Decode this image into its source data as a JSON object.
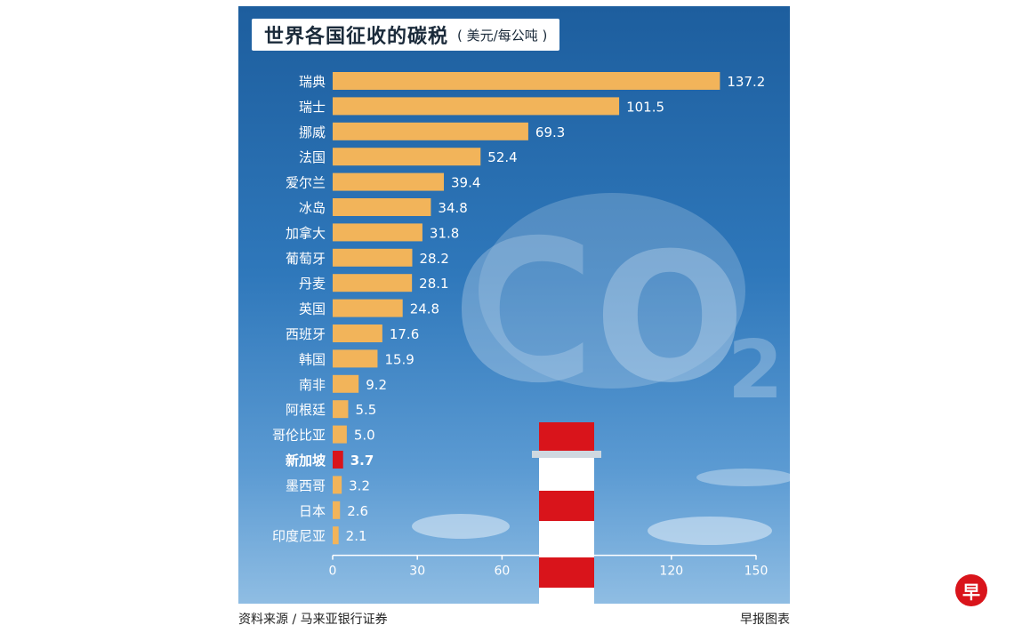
{
  "header": {
    "title": "世界各国征收的碳税",
    "unit": "( 美元/每公吨 )"
  },
  "footer": {
    "source": "资料来源 / 马来亚银行证券",
    "credit": "早报图表"
  },
  "logo": {
    "text": "早"
  },
  "colors": {
    "bar": "#f2b45a",
    "highlight": "#d9141b",
    "background": "#2f78bb"
  },
  "chart_data": {
    "type": "bar",
    "orientation": "horizontal",
    "title": "世界各国征收的碳税",
    "unit": "( 美元/每公吨 )",
    "categories": [
      "瑞典",
      "瑞士",
      "挪威",
      "法国",
      "爱尔兰",
      "冰岛",
      "加拿大",
      "葡萄牙",
      "丹麦",
      "英国",
      "西班牙",
      "韩国",
      "南非",
      "阿根廷",
      "哥伦比亚",
      "新加坡",
      "墨西哥",
      "日本",
      "印度尼亚"
    ],
    "values": [
      137.2,
      101.5,
      69.3,
      52.4,
      39.4,
      34.8,
      31.8,
      28.2,
      28.1,
      24.8,
      17.6,
      15.9,
      9.2,
      5.5,
      5.0,
      3.7,
      3.2,
      2.6,
      2.1
    ],
    "value_labels": [
      "137.2",
      "101.5",
      "69.3",
      "52.4",
      "39.4",
      "34.8",
      "31.8",
      "28.2",
      "28.1",
      "24.8",
      "17.6",
      "15.9",
      "9.2",
      "5.5",
      "5.0",
      "3.7",
      "3.2",
      "2.6",
      "2.1"
    ],
    "highlight": "新加坡",
    "xticks": [
      0,
      30,
      60,
      120,
      150
    ],
    "xlim": [
      0,
      150
    ],
    "grid": false,
    "legend": "none",
    "background_illustration": "CO2 smoke cloud and red-white chimney"
  }
}
